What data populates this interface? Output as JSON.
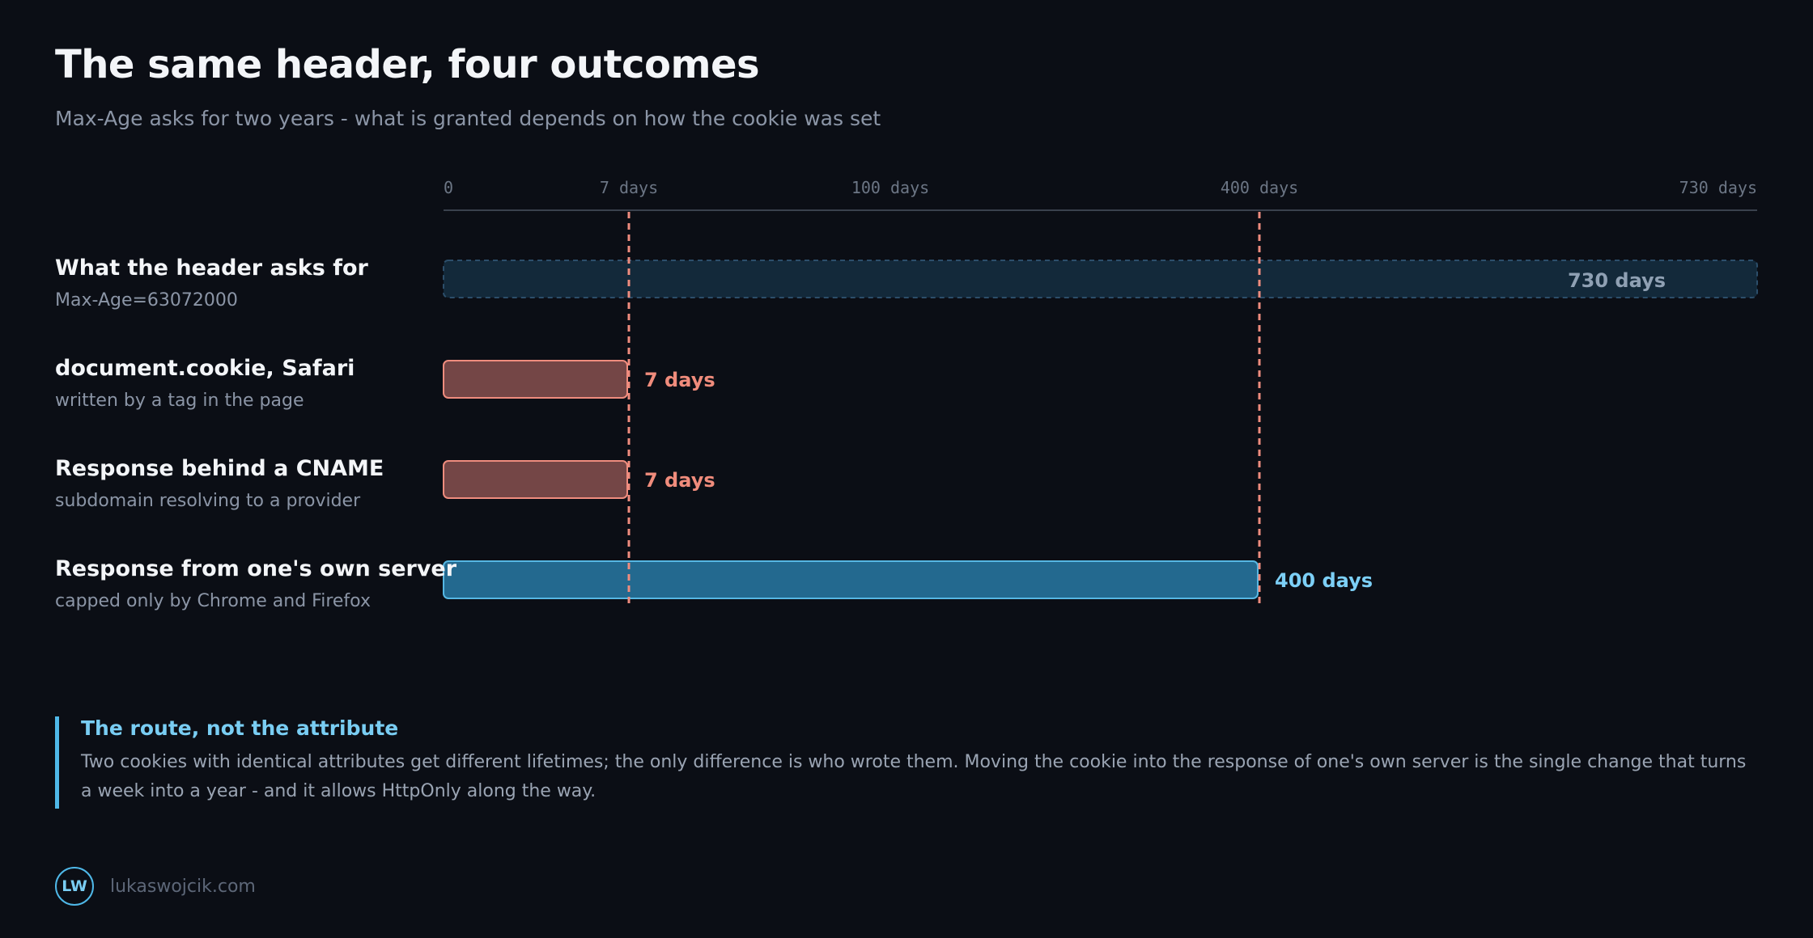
{
  "header": {
    "title": "The same header, four outcomes",
    "subtitle": "Max-Age asks for two years - what is granted depends on how the cookie was set"
  },
  "chart_data": {
    "type": "bar",
    "orientation": "horizontal",
    "x_scale": "piecewise",
    "xlim": [
      0,
      730
    ],
    "ticks": [
      {
        "value": 0,
        "label": "0"
      },
      {
        "value": 7,
        "label": "7 days"
      },
      {
        "value": 100,
        "label": "100 days"
      },
      {
        "value": 400,
        "label": "400 days"
      },
      {
        "value": 730,
        "label": "730 days"
      }
    ],
    "reference_lines": [
      7,
      400
    ],
    "grid": false,
    "legend": "none",
    "rows": [
      {
        "title": "What the header asks for",
        "subtitle": "Max-Age=63072000",
        "value": 730,
        "value_label": "730 days",
        "style": "requested"
      },
      {
        "title": "document.cookie, Safari",
        "subtitle": "written by a tag in the page",
        "value": 7,
        "value_label": "7 days",
        "style": "capped"
      },
      {
        "title": "Response behind a CNAME",
        "subtitle": "subdomain resolving to a provider",
        "value": 7,
        "value_label": "7 days",
        "style": "capped"
      },
      {
        "title": "Response from one's own server",
        "subtitle": "capped only by Chrome and Firefox",
        "value": 400,
        "value_label": "400 days",
        "style": "server"
      }
    ],
    "colors": {
      "requested_fill": "#13293a",
      "requested_stroke": "#2c4e6a",
      "requested_label": "#8fa0b3",
      "capped_fill": "#744646",
      "capped_stroke": "#ef8c7e",
      "capped_label": "#f08c7c",
      "server_fill": "#23698f",
      "server_stroke": "#56b7e3",
      "server_label": "#7ccff6",
      "reference_line": "#ef8c7e",
      "axis": "#3a414d",
      "tick_label": "#6c7685"
    }
  },
  "callout": {
    "title": "The route, not the attribute",
    "text": "Two cookies with identical attributes get different lifetimes; the only difference is who wrote them. Moving the cookie into the response of one's own server is the single change that turns a week into a year - and it allows HttpOnly along the way."
  },
  "footer": {
    "logo_text": "LW",
    "url": "lukaswojcik.com"
  }
}
